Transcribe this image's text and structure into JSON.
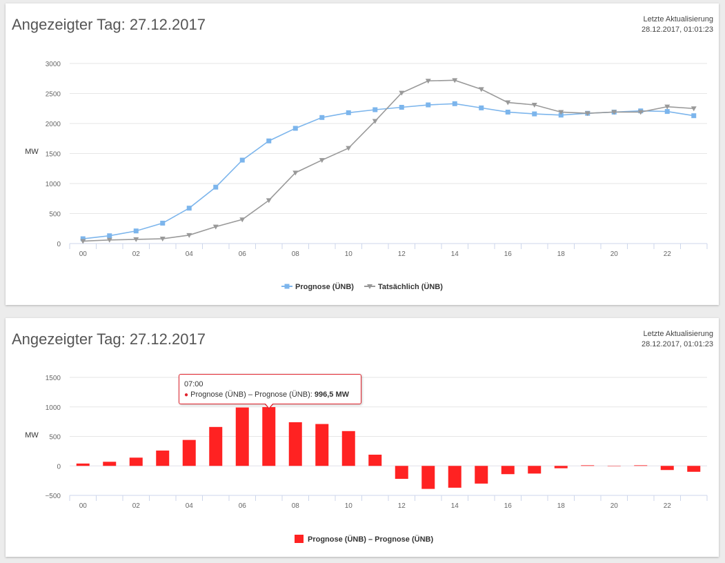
{
  "panels": [
    {
      "title": "Angezeigter Tag: 27.12.2017",
      "update_label": "Letzte Aktualisierung",
      "update_time": "28.12.2017, 01:01:23"
    },
    {
      "title": "Angezeigter Tag: 27.12.2017",
      "update_label": "Letzte Aktualisierung",
      "update_time": "28.12.2017, 01:01:23"
    }
  ],
  "tooltip": {
    "time": "07:00",
    "series": "Prognose (ÜNB) – Prognose (ÜNB):",
    "value": "996,5 MW"
  },
  "colors": {
    "prognose": "#7cb5ec",
    "tatsaechlich": "#999999",
    "difference": "#ff2222",
    "grid": "#e6e6e6",
    "axis": "#ccd6eb"
  },
  "chart_data": [
    {
      "type": "line",
      "ylabel": "MW",
      "ylim": [
        0,
        3000
      ],
      "yticks": [
        "0",
        "500",
        "1000",
        "1500",
        "2000",
        "2500",
        "3000"
      ],
      "x": [
        "00",
        "01",
        "02",
        "03",
        "04",
        "05",
        "06",
        "07",
        "08",
        "09",
        "10",
        "11",
        "12",
        "13",
        "14",
        "15",
        "16",
        "17",
        "18",
        "19",
        "20",
        "21",
        "22",
        "23"
      ],
      "xtick_labels": [
        "00",
        "02",
        "04",
        "06",
        "08",
        "10",
        "12",
        "14",
        "16",
        "18",
        "20",
        "22"
      ],
      "grid": true,
      "legend_position": "bottom-center",
      "series": [
        {
          "name": "Prognose (ÜNB)",
          "marker": "square",
          "color": "#7cb5ec",
          "values": [
            80,
            130,
            210,
            340,
            590,
            940,
            1390,
            1710,
            1920,
            2100,
            2180,
            2230,
            2270,
            2310,
            2330,
            2260,
            2190,
            2160,
            2140,
            2170,
            2190,
            2210,
            2200,
            2130
          ]
        },
        {
          "name": "Tatsächlich (ÜNB)",
          "marker": "triangle-down",
          "color": "#999999",
          "values": [
            40,
            60,
            70,
            80,
            140,
            280,
            400,
            720,
            1180,
            1390,
            1590,
            2040,
            2510,
            2710,
            2720,
            2570,
            2350,
            2310,
            2190,
            2170,
            2190,
            2190,
            2280,
            2250
          ]
        }
      ]
    },
    {
      "type": "bar",
      "ylabel": "MW",
      "ylim": [
        -500,
        1500
      ],
      "yticks": [
        "−500",
        "0",
        "500",
        "1000",
        "1500"
      ],
      "x": [
        "00",
        "01",
        "02",
        "03",
        "04",
        "05",
        "06",
        "07",
        "08",
        "09",
        "10",
        "11",
        "12",
        "13",
        "14",
        "15",
        "16",
        "17",
        "18",
        "19",
        "20",
        "21",
        "22",
        "23"
      ],
      "xtick_labels": [
        "00",
        "02",
        "04",
        "06",
        "08",
        "10",
        "12",
        "14",
        "16",
        "18",
        "20",
        "22"
      ],
      "grid": true,
      "legend_position": "bottom-center",
      "series": [
        {
          "name": "Prognose (ÜNB) – Prognose (ÜNB)",
          "color": "#ff2222",
          "values": [
            40,
            70,
            140,
            260,
            440,
            660,
            990,
            996.5,
            740,
            710,
            590,
            190,
            -220,
            -390,
            -370,
            -300,
            -140,
            -130,
            -40,
            10,
            0,
            10,
            -70,
            -100
          ]
        }
      ]
    }
  ]
}
